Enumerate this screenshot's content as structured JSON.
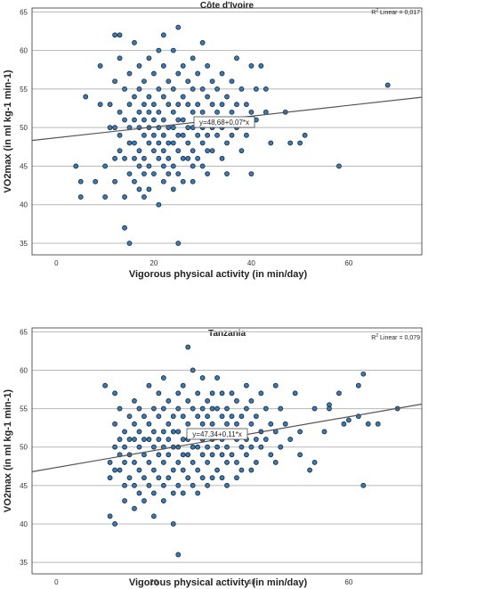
{
  "chart_data": [
    {
      "type": "scatter",
      "title": "Côte d'Ivoire",
      "xlabel": "Vigorous physical activity (in min/day)",
      "ylabel": "VO2max (in ml kg-1 min-1)",
      "xlim": [
        -5,
        75
      ],
      "ylim": [
        33.5,
        65.5
      ],
      "xticks": [
        0,
        20,
        40,
        60
      ],
      "yticks": [
        35,
        40,
        45,
        50,
        55,
        60,
        65
      ],
      "grid": "horizontal",
      "r2_label": "R",
      "r2_sup": "2",
      "r2_text": " Linear = 0,017",
      "equation": "y=48,68+0,07*x",
      "fit": {
        "intercept": 48.68,
        "slope": 0.07
      },
      "points": [
        [
          4,
          45
        ],
        [
          5,
          41
        ],
        [
          5,
          43
        ],
        [
          6,
          54
        ],
        [
          8,
          43
        ],
        [
          9,
          58
        ],
        [
          9,
          53
        ],
        [
          10,
          45
        ],
        [
          10,
          41
        ],
        [
          11,
          50
        ],
        [
          11,
          53
        ],
        [
          12,
          62
        ],
        [
          12,
          56
        ],
        [
          12,
          50
        ],
        [
          12,
          46
        ],
        [
          12,
          43
        ],
        [
          13,
          62
        ],
        [
          13,
          59
        ],
        [
          13,
          52
        ],
        [
          13,
          49
        ],
        [
          13,
          47
        ],
        [
          14,
          55
        ],
        [
          14,
          51
        ],
        [
          14,
          46
        ],
        [
          14,
          41
        ],
        [
          14,
          37
        ],
        [
          15,
          57
        ],
        [
          15,
          53
        ],
        [
          15,
          50
        ],
        [
          15,
          48
        ],
        [
          15,
          44
        ],
        [
          15,
          35
        ],
        [
          16,
          61
        ],
        [
          16,
          54
        ],
        [
          16,
          51
        ],
        [
          16,
          48
        ],
        [
          16,
          46
        ],
        [
          16,
          43
        ],
        [
          17,
          58
        ],
        [
          17,
          55
        ],
        [
          17,
          52
        ],
        [
          17,
          50
        ],
        [
          17,
          47
        ],
        [
          17,
          45
        ],
        [
          17,
          42
        ],
        [
          18,
          56
        ],
        [
          18,
          53
        ],
        [
          18,
          51
        ],
        [
          18,
          49
        ],
        [
          18,
          46
        ],
        [
          18,
          44
        ],
        [
          18,
          41
        ],
        [
          19,
          59
        ],
        [
          19,
          54
        ],
        [
          19,
          52
        ],
        [
          19,
          50
        ],
        [
          19,
          48
        ],
        [
          19,
          45
        ],
        [
          19,
          42
        ],
        [
          20,
          57
        ],
        [
          20,
          53
        ],
        [
          20,
          51
        ],
        [
          20,
          49
        ],
        [
          20,
          47
        ],
        [
          20,
          44
        ],
        [
          21,
          60
        ],
        [
          21,
          55
        ],
        [
          21,
          52
        ],
        [
          21,
          50
        ],
        [
          21,
          48
        ],
        [
          21,
          46
        ],
        [
          21,
          40
        ],
        [
          22,
          62
        ],
        [
          22,
          58
        ],
        [
          22,
          54
        ],
        [
          22,
          51
        ],
        [
          22,
          49
        ],
        [
          22,
          47
        ],
        [
          22,
          45
        ],
        [
          22,
          43
        ],
        [
          23,
          56
        ],
        [
          23,
          53
        ],
        [
          23,
          50
        ],
        [
          23,
          48
        ],
        [
          23,
          46
        ],
        [
          23,
          44
        ],
        [
          24,
          60
        ],
        [
          24,
          55
        ],
        [
          24,
          52
        ],
        [
          24,
          50
        ],
        [
          24,
          48
        ],
        [
          24,
          45
        ],
        [
          24,
          42
        ],
        [
          25,
          63
        ],
        [
          25,
          57
        ],
        [
          25,
          53
        ],
        [
          25,
          51
        ],
        [
          25,
          49
        ],
        [
          25,
          47
        ],
        [
          25,
          44
        ],
        [
          25,
          35
        ],
        [
          26,
          58
        ],
        [
          26,
          54
        ],
        [
          26,
          51
        ],
        [
          26,
          49
        ],
        [
          26,
          46
        ],
        [
          26,
          43
        ],
        [
          27,
          56
        ],
        [
          27,
          53
        ],
        [
          27,
          50
        ],
        [
          27,
          48
        ],
        [
          27,
          46
        ],
        [
          28,
          59
        ],
        [
          28,
          55
        ],
        [
          28,
          52
        ],
        [
          28,
          50
        ],
        [
          28,
          47
        ],
        [
          28,
          45
        ],
        [
          28,
          43
        ],
        [
          29,
          57
        ],
        [
          29,
          53
        ],
        [
          29,
          51
        ],
        [
          29,
          49
        ],
        [
          29,
          46
        ],
        [
          30,
          61
        ],
        [
          30,
          55
        ],
        [
          30,
          52
        ],
        [
          30,
          50
        ],
        [
          30,
          48
        ],
        [
          30,
          45
        ],
        [
          31,
          58
        ],
        [
          31,
          54
        ],
        [
          31,
          51
        ],
        [
          31,
          49
        ],
        [
          31,
          47
        ],
        [
          31,
          44
        ],
        [
          32,
          56
        ],
        [
          32,
          53
        ],
        [
          32,
          50
        ],
        [
          32,
          47
        ],
        [
          33,
          55
        ],
        [
          33,
          52
        ],
        [
          33,
          49
        ],
        [
          34,
          57
        ],
        [
          34,
          53
        ],
        [
          34,
          50
        ],
        [
          34,
          46
        ],
        [
          35,
          54
        ],
        [
          35,
          51
        ],
        [
          35,
          48
        ],
        [
          35,
          44
        ],
        [
          36,
          56
        ],
        [
          36,
          52
        ],
        [
          36,
          49
        ],
        [
          37,
          59
        ],
        [
          37,
          53
        ],
        [
          37,
          50
        ],
        [
          38,
          55
        ],
        [
          38,
          51
        ],
        [
          38,
          47
        ],
        [
          39,
          53
        ],
        [
          39,
          49
        ],
        [
          40,
          58
        ],
        [
          40,
          52
        ],
        [
          40,
          44
        ],
        [
          41,
          55
        ],
        [
          41,
          51
        ],
        [
          42,
          58
        ],
        [
          43,
          52
        ],
        [
          43,
          55
        ],
        [
          44,
          48
        ],
        [
          47,
          52
        ],
        [
          48,
          48
        ],
        [
          50,
          48
        ],
        [
          51,
          49
        ],
        [
          58,
          45
        ],
        [
          68,
          55.5
        ]
      ]
    },
    {
      "type": "scatter",
      "title": "Tanzania",
      "xlabel": "Vigorous physical activity (in min/day)",
      "ylabel": "VO2max (in ml kg-1 min-1)",
      "xlim": [
        -5,
        75
      ],
      "ylim": [
        33.5,
        65.5
      ],
      "xticks": [
        0,
        20,
        40,
        60
      ],
      "yticks": [
        35,
        40,
        45,
        50,
        55,
        60,
        65
      ],
      "grid": "horizontal",
      "r2_label": "R",
      "r2_sup": "2",
      "r2_text": " Linear = 0,079",
      "equation": "y=47,34+0,11*x",
      "fit": {
        "intercept": 47.34,
        "slope": 0.11
      },
      "points": [
        [
          10,
          58
        ],
        [
          11,
          48
        ],
        [
          11,
          46
        ],
        [
          11,
          41
        ],
        [
          12,
          57
        ],
        [
          12,
          53
        ],
        [
          12,
          50
        ],
        [
          12,
          47
        ],
        [
          12,
          40
        ],
        [
          13,
          55
        ],
        [
          13,
          51
        ],
        [
          13,
          49
        ],
        [
          13,
          47
        ],
        [
          14,
          52
        ],
        [
          14,
          50
        ],
        [
          14,
          48
        ],
        [
          14,
          45
        ],
        [
          14,
          43
        ],
        [
          15,
          54
        ],
        [
          15,
          51
        ],
        [
          15,
          49
        ],
        [
          15,
          46
        ],
        [
          16,
          56
        ],
        [
          16,
          53
        ],
        [
          16,
          51
        ],
        [
          16,
          48
        ],
        [
          16,
          45
        ],
        [
          16,
          42
        ],
        [
          17,
          55
        ],
        [
          17,
          52
        ],
        [
          17,
          50
        ],
        [
          17,
          47
        ],
        [
          17,
          44
        ],
        [
          18,
          54
        ],
        [
          18,
          51
        ],
        [
          18,
          49
        ],
        [
          18,
          46
        ],
        [
          18,
          43
        ],
        [
          19,
          58
        ],
        [
          19,
          53
        ],
        [
          19,
          51
        ],
        [
          19,
          48
        ],
        [
          19,
          45
        ],
        [
          20,
          55
        ],
        [
          20,
          52
        ],
        [
          20,
          50
        ],
        [
          20,
          47
        ],
        [
          20,
          44
        ],
        [
          20,
          41
        ],
        [
          21,
          57
        ],
        [
          21,
          54
        ],
        [
          21,
          51
        ],
        [
          21,
          49
        ],
        [
          21,
          46
        ],
        [
          22,
          59
        ],
        [
          22,
          55
        ],
        [
          22,
          52
        ],
        [
          22,
          50
        ],
        [
          22,
          48
        ],
        [
          22,
          45
        ],
        [
          22,
          43
        ],
        [
          23,
          56
        ],
        [
          23,
          53
        ],
        [
          23,
          51
        ],
        [
          23,
          49
        ],
        [
          23,
          46
        ],
        [
          24,
          54
        ],
        [
          24,
          52
        ],
        [
          24,
          50
        ],
        [
          24,
          47
        ],
        [
          24,
          44
        ],
        [
          24,
          40
        ],
        [
          25,
          57
        ],
        [
          25,
          55
        ],
        [
          25,
          52
        ],
        [
          25,
          50
        ],
        [
          25,
          48
        ],
        [
          25,
          45
        ],
        [
          25,
          36
        ],
        [
          26,
          58
        ],
        [
          26,
          54
        ],
        [
          26,
          51
        ],
        [
          26,
          49
        ],
        [
          26,
          47
        ],
        [
          26,
          44
        ],
        [
          27,
          63
        ],
        [
          27,
          56
        ],
        [
          27,
          53
        ],
        [
          27,
          51
        ],
        [
          27,
          49
        ],
        [
          27,
          46
        ],
        [
          28,
          60
        ],
        [
          28,
          55
        ],
        [
          28,
          52
        ],
        [
          28,
          50
        ],
        [
          28,
          48
        ],
        [
          28,
          45
        ],
        [
          29,
          57
        ],
        [
          29,
          54
        ],
        [
          29,
          52
        ],
        [
          29,
          50
        ],
        [
          29,
          47
        ],
        [
          29,
          44
        ],
        [
          30,
          59
        ],
        [
          30,
          55
        ],
        [
          30,
          53
        ],
        [
          30,
          51
        ],
        [
          30,
          49
        ],
        [
          30,
          46
        ],
        [
          31,
          56
        ],
        [
          31,
          54
        ],
        [
          31,
          52
        ],
        [
          31,
          50
        ],
        [
          31,
          48
        ],
        [
          31,
          45
        ],
        [
          32,
          57
        ],
        [
          32,
          55
        ],
        [
          32,
          53
        ],
        [
          32,
          51
        ],
        [
          32,
          49
        ],
        [
          32,
          46
        ],
        [
          33,
          59
        ],
        [
          33,
          55
        ],
        [
          33,
          52
        ],
        [
          33,
          50
        ],
        [
          33,
          47
        ],
        [
          34,
          57
        ],
        [
          34,
          54
        ],
        [
          34,
          51
        ],
        [
          34,
          49
        ],
        [
          34,
          46
        ],
        [
          35,
          55
        ],
        [
          35,
          53
        ],
        [
          35,
          50
        ],
        [
          35,
          48
        ],
        [
          35,
          45
        ],
        [
          36,
          57
        ],
        [
          36,
          54
        ],
        [
          36,
          52
        ],
        [
          36,
          49
        ],
        [
          37,
          56
        ],
        [
          37,
          53
        ],
        [
          37,
          51
        ],
        [
          37,
          48
        ],
        [
          37,
          46
        ],
        [
          38,
          54
        ],
        [
          38,
          52
        ],
        [
          38,
          50
        ],
        [
          38,
          47
        ],
        [
          39,
          58
        ],
        [
          39,
          55
        ],
        [
          39,
          51
        ],
        [
          39,
          49
        ],
        [
          40,
          56
        ],
        [
          40,
          53
        ],
        [
          40,
          50
        ],
        [
          40,
          47
        ],
        [
          41,
          54
        ],
        [
          41,
          51
        ],
        [
          41,
          48
        ],
        [
          42,
          57
        ],
        [
          42,
          52
        ],
        [
          42,
          50
        ],
        [
          43,
          55
        ],
        [
          43,
          51
        ],
        [
          44,
          53
        ],
        [
          44,
          49
        ],
        [
          45,
          58
        ],
        [
          45,
          52
        ],
        [
          45,
          48
        ],
        [
          46,
          55
        ],
        [
          46,
          50
        ],
        [
          47,
          53
        ],
        [
          48,
          51
        ],
        [
          49,
          57
        ],
        [
          50,
          52
        ],
        [
          50,
          49
        ],
        [
          52,
          47
        ],
        [
          53,
          55
        ],
        [
          53,
          48
        ],
        [
          55,
          52
        ],
        [
          56,
          55.5
        ],
        [
          56,
          55
        ],
        [
          58,
          57
        ],
        [
          59,
          53
        ],
        [
          60,
          53.5
        ],
        [
          62,
          58
        ],
        [
          62,
          54
        ],
        [
          63,
          59.5
        ],
        [
          63,
          45
        ],
        [
          64,
          53
        ],
        [
          66,
          53
        ],
        [
          70,
          55
        ]
      ]
    }
  ]
}
